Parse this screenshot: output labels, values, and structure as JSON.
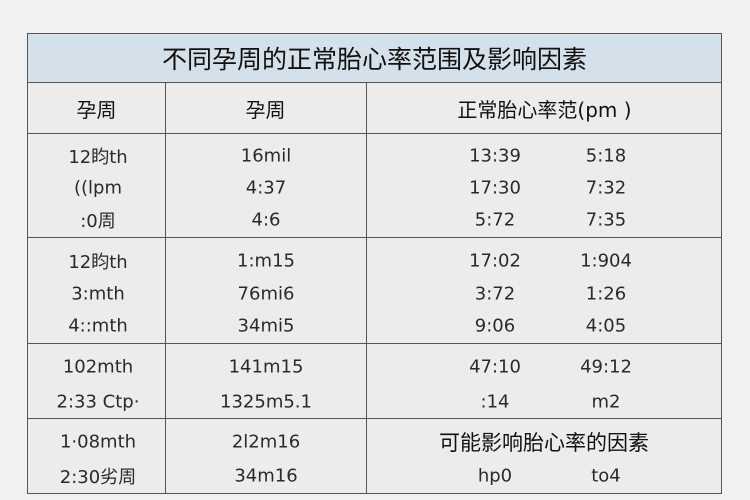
{
  "title": "不同孕周的正常胎心率范围及影响因素",
  "headers": [
    "孕周",
    "孕周",
    "正常胎心率范(pm )"
  ],
  "groups": [
    {
      "rows": [
        {
          "c1": "12盷th",
          "c2": "16mil",
          "c3": "13:39",
          "c4": "5:18"
        },
        {
          "c1": "((lpm",
          "c2": "4:37",
          "c3": "17:30",
          "c4": "7:32"
        },
        {
          "c1": ":0周",
          "c2": "4:6",
          "c3": "5:72",
          "c4": "7:35"
        }
      ]
    },
    {
      "rows": [
        {
          "c1": "12盷th",
          "c2": "1:m15",
          "c3": "17:02",
          "c4": "1:904"
        },
        {
          "c1": "3:mth",
          "c2": "76mi6",
          "c3": "3:72",
          "c4": "1:26"
        },
        {
          "c1": "4::mth",
          "c2": "34mi5",
          "c3": "9:06",
          "c4": "4:05"
        }
      ]
    },
    {
      "rows": [
        {
          "c1": "102mth",
          "c2": "141m15",
          "c3": "47:10",
          "c4": "49:12"
        },
        {
          "c1": "2:33 Ctp·",
          "c2": "1325m5.1",
          "c3": ":14",
          "c4": "m2"
        }
      ]
    },
    {
      "factors_heading": "可能影响胎心率的因素",
      "rows": [
        {
          "c1": "1·08mth",
          "c2": "2l2m16"
        },
        {
          "c1": "2:30劣周",
          "c2": "34m16",
          "c3": "hp0",
          "c4": "to4"
        }
      ]
    }
  ]
}
